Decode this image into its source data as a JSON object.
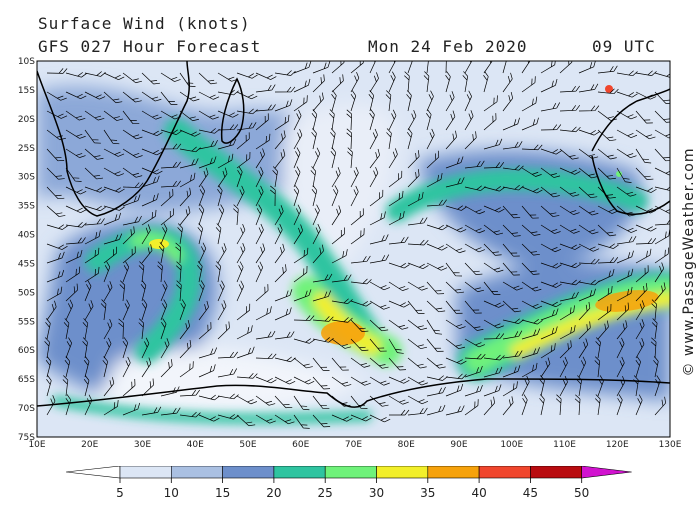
{
  "title": {
    "product": "Surface Wind (knots)",
    "model": "GFS 027 Hour Forecast",
    "date": "Mon 24 Feb 2020",
    "time": "09 UTC"
  },
  "credit": "© www.PassageWeather.com",
  "axes": {
    "lat_labels": [
      "10S",
      "15S",
      "20S",
      "25S",
      "30S",
      "35S",
      "40S",
      "45S",
      "50S",
      "55S",
      "60S",
      "65S",
      "70S",
      "75S"
    ],
    "lon_labels": [
      "10E",
      "20E",
      "30E",
      "40E",
      "50E",
      "60E",
      "70E",
      "80E",
      "90E",
      "100E",
      "110E",
      "120E",
      "130E"
    ]
  },
  "legend": {
    "ticks": [
      "5",
      "10",
      "15",
      "20",
      "25",
      "30",
      "35",
      "40",
      "45",
      "50"
    ],
    "colors": [
      "#ffffff",
      "#dce6f5",
      "#aac0e2",
      "#6d8fcb",
      "#2fc4a0",
      "#6ff27a",
      "#f2ef2a",
      "#f6a20c",
      "#f0462d",
      "#b90c10",
      "#d112cf"
    ]
  },
  "colors": {
    "land_line": "#000000",
    "barb": "#000000"
  }
}
